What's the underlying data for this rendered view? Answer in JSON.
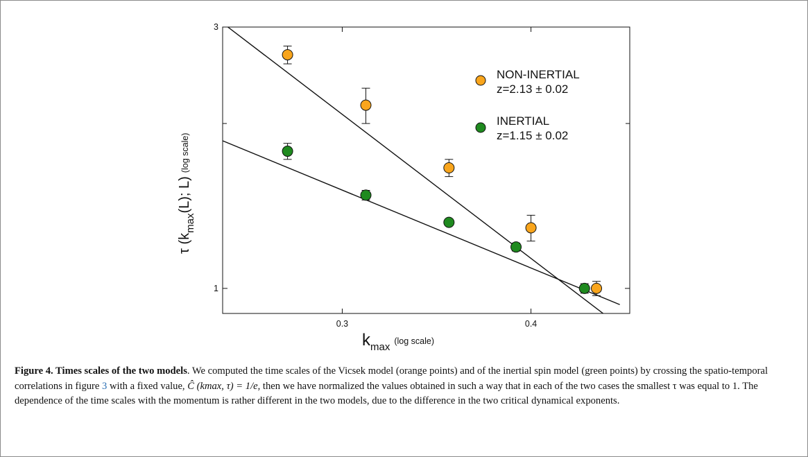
{
  "chart_data": {
    "type": "scatter",
    "x_scale": "log",
    "y_scale": "log",
    "xlim": [
      0.25,
      0.465
    ],
    "ylim": [
      0.9,
      3.0
    ],
    "x_ticks": [
      0.3,
      0.4
    ],
    "x_tick_labels": [
      "0.3",
      "0.4"
    ],
    "y_ticks": [
      1,
      3
    ],
    "y_tick_labels": [
      "1",
      "3"
    ],
    "xlabel": {
      "main": "k",
      "sub": "max",
      "note": "(log scale)"
    },
    "ylabel": {
      "main": "τ (k",
      "sub": "max",
      "tail": "(L); L)",
      "note": "(log scale)"
    },
    "grid": false,
    "legend_position": "top-right",
    "series": [
      {
        "name": "NON-INERTIAL",
        "fit_label": "z=2.13 ± 0.02",
        "color": "#f9a51c",
        "x": [
          0.276,
          0.311,
          0.353,
          0.4,
          0.442
        ],
        "y": [
          2.67,
          2.16,
          1.66,
          1.29,
          1.0
        ],
        "err": [
          0.1,
          0.16,
          0.06,
          0.07,
          0.03
        ],
        "fit": {
          "x": [
            0.252,
            0.458
          ],
          "y": [
            3.0,
            0.853
          ]
        }
      },
      {
        "name": "INERTIAL",
        "fit_label": "z=1.15 ± 0.02",
        "color": "#1f8a1f",
        "x": [
          0.276,
          0.311,
          0.353,
          0.391,
          0.434
        ],
        "y": [
          1.78,
          1.48,
          1.32,
          1.19,
          1.0
        ],
        "err": [
          0.06,
          0.03,
          0.0,
          0.02,
          0.02
        ],
        "fit": {
          "x": [
            0.25,
            0.458
          ],
          "y": [
            1.86,
            0.934
          ]
        }
      }
    ]
  },
  "caption": {
    "label": "Figure 4. Times scales of the two models",
    "text_1": ". We computed the time scales of the Vicsek model (orange points) and of the inertial spin model (green points) by crossing the spatio-temporal correlations in figure ",
    "ref": "3",
    "text_2": " with a fixed value, ",
    "math": "Ĉ (kmax, τ) = 1/e",
    "text_3": ", then we have normalized the values obtained in such a way that in each of the two cases the smallest τ was equal to 1. The dependence of the time scales with the momentum is rather different in the two models, due to the difference in the two critical dynamical exponents."
  }
}
